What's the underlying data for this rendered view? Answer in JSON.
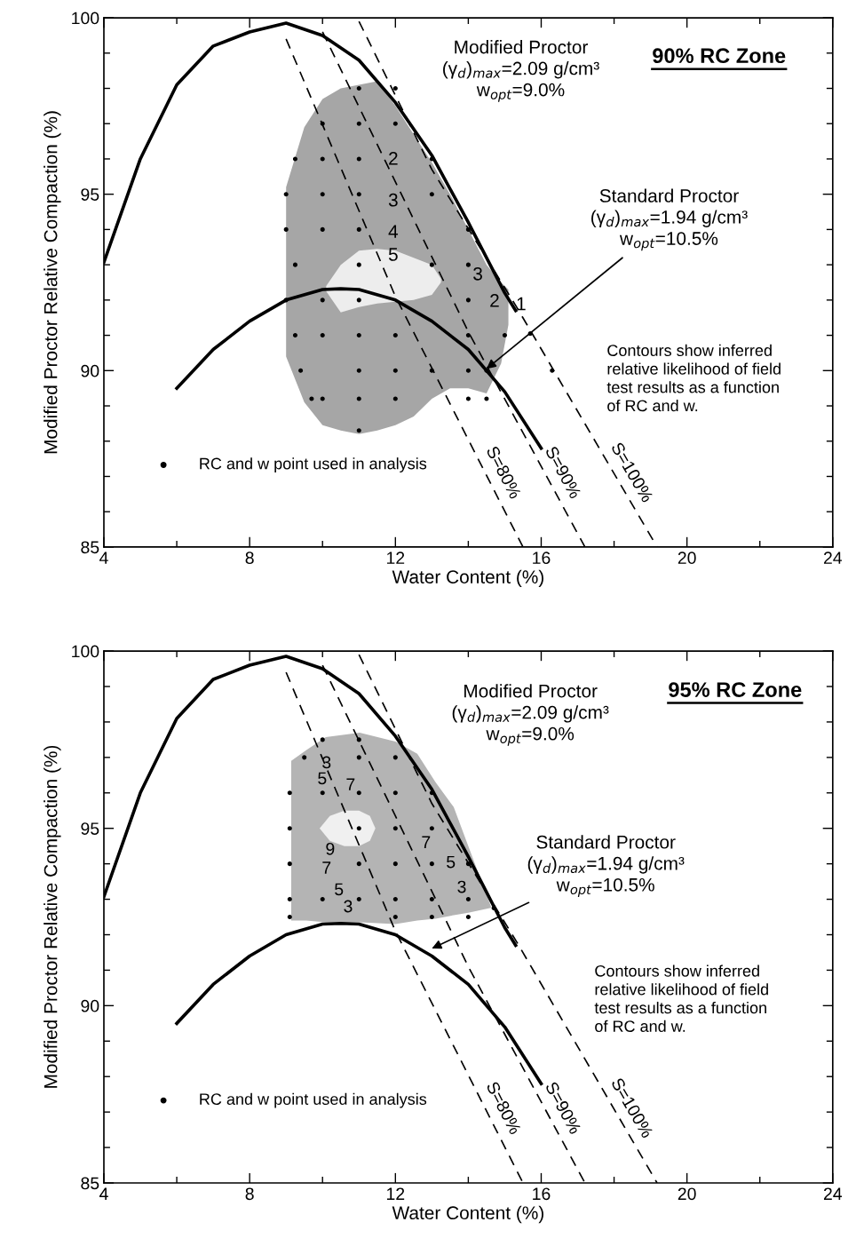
{
  "chart_data": [
    {
      "type": "line",
      "title": "90% RC Zone",
      "xlabel": "Water Content (%)",
      "ylabel": "Modified Proctor Relative Compaction (%)",
      "xlim": [
        4,
        24
      ],
      "ylim": [
        85,
        100
      ],
      "xticks": [
        4,
        {
          "value": 6,
          "label": null
        },
        8,
        {
          "value": 10,
          "label": null
        },
        12,
        {
          "value": 14,
          "label": null
        },
        16,
        {
          "value": 18,
          "label": null
        },
        20,
        {
          "value": 22,
          "label": null
        },
        24
      ],
      "yticks": [
        85,
        {
          "value": 86,
          "label": null
        },
        {
          "value": 87,
          "label": null
        },
        {
          "value": 88,
          "label": null
        },
        {
          "value": 89,
          "label": null
        },
        90,
        {
          "value": 91,
          "label": null
        },
        {
          "value": 92,
          "label": null
        },
        {
          "value": 93,
          "label": null
        },
        {
          "value": 94,
          "label": null
        },
        95,
        {
          "value": 96,
          "label": null
        },
        {
          "value": 97,
          "label": null
        },
        {
          "value": 98,
          "label": null
        },
        {
          "value": 99,
          "label": null
        },
        100
      ],
      "legend": "bottom left",
      "series": [
        {
          "color": "#000000",
          "line_style": "solid",
          "x": [
            4,
            5,
            6,
            7,
            8,
            9,
            10,
            11,
            12,
            13,
            14,
            15,
            15.3
          ],
          "values": [
            93.07,
            96.0,
            98.1,
            99.2,
            99.6,
            99.85,
            99.5,
            98.8,
            97.6,
            96.1,
            94.2,
            92.2,
            91.7
          ]
        },
        {
          "color": "#000000",
          "line_style": "solid",
          "x": [
            6,
            7,
            8,
            9,
            10,
            10.5,
            11,
            12,
            13,
            14,
            15,
            16
          ],
          "values": [
            89.5,
            90.6,
            91.4,
            92.0,
            92.3,
            92.32,
            92.3,
            92.0,
            91.4,
            90.6,
            89.4,
            87.8
          ]
        },
        {
          "name": "S=80%",
          "color": "#000000",
          "line_style": "dashed",
          "x": [
            9.0,
            12.0,
            15.5
          ],
          "values": [
            99.4,
            92.1,
            85
          ]
        },
        {
          "name": "S=90%",
          "color": "#000000",
          "line_style": "dashed",
          "x": [
            10.0,
            14.0,
            17.2
          ],
          "values": [
            99.6,
            91.1,
            85
          ]
        },
        {
          "name": "S=100%",
          "color": "#000000",
          "line_style": "dashed",
          "x": [
            11.0,
            13.0,
            15.35,
            19.18
          ],
          "values": [
            99.9,
            95.7,
            91.76,
            85
          ]
        },
        {
          "type": "scatter",
          "name": "RC and w point used in analysis",
          "color": "#000000",
          "marker": "circle",
          "x": [
            11,
            12,
            10,
            11,
            12,
            9.25,
            10,
            11,
            13,
            9,
            10,
            11,
            13,
            9,
            10,
            11,
            14,
            9.25,
            11,
            13,
            14,
            9,
            10,
            11,
            14,
            9.25,
            10,
            11,
            12,
            14,
            15,
            15.7,
            9.4,
            11,
            12,
            13,
            14,
            14.5,
            16.3,
            9.7,
            10,
            11,
            12,
            14,
            14.5,
            11
          ],
          "values": [
            98,
            98,
            97,
            97,
            97,
            96,
            96,
            96,
            96,
            95,
            95,
            95,
            95,
            94,
            94,
            94,
            94,
            93,
            93,
            93,
            93,
            92,
            92,
            92,
            92,
            91,
            91,
            91,
            91,
            91,
            91,
            91.05,
            90,
            90,
            90,
            90,
            90,
            90,
            90,
            89.2,
            89.2,
            89.2,
            89.2,
            89.2,
            89.2,
            88.3
          ]
        }
      ],
      "annotations": [
        "Modified Proctor\n(γ$_{d}$)$_{max}$=2.09 g/cm³\nw$_{opt}$=9.0%",
        "Standard Proctor\n(γ$_{d}$)$_{max}$=1.94 g/cm³\nw$_{opt}$=10.5%",
        "Contours show inferred\nrelative likelihood of field\ntest results as a function\nof RC and w.",
        "2",
        "3",
        "4",
        "5",
        "3",
        "2",
        "1"
      ]
    },
    {
      "type": "line",
      "title": "95% RC Zone",
      "xlabel": "Water Content (%)",
      "ylabel": "Modified Proctor Relative Compaction (%)",
      "xlim": [
        4,
        24
      ],
      "ylim": [
        85,
        100
      ],
      "xticks": [
        4,
        {
          "value": 6,
          "label": null
        },
        8,
        {
          "value": 10,
          "label": null
        },
        12,
        {
          "value": 14,
          "label": null
        },
        16,
        {
          "value": 18,
          "label": null
        },
        20,
        {
          "value": 22,
          "label": null
        },
        24
      ],
      "yticks": [
        85,
        {
          "value": 86,
          "label": null
        },
        {
          "value": 87,
          "label": null
        },
        {
          "value": 88,
          "label": null
        },
        {
          "value": 89,
          "label": null
        },
        90,
        {
          "value": 91,
          "label": null
        },
        {
          "value": 92,
          "label": null
        },
        {
          "value": 93,
          "label": null
        },
        {
          "value": 94,
          "label": null
        },
        95,
        {
          "value": 96,
          "label": null
        },
        {
          "value": 97,
          "label": null
        },
        {
          "value": 98,
          "label": null
        },
        {
          "value": 99,
          "label": null
        },
        100
      ],
      "legend": "bottom left",
      "series": [
        {
          "color": "#000000",
          "line_style": "solid",
          "x": [
            4,
            5,
            6,
            7,
            8,
            9,
            10,
            11,
            12,
            13,
            14,
            15,
            15.3
          ],
          "values": [
            93.07,
            96.0,
            98.1,
            99.2,
            99.6,
            99.85,
            99.5,
            98.8,
            97.6,
            96.1,
            94.2,
            92.2,
            91.7
          ]
        },
        {
          "color": "#000000",
          "line_style": "solid",
          "x": [
            6,
            7,
            8,
            9,
            10,
            10.5,
            11,
            12,
            13,
            14,
            15,
            16
          ],
          "values": [
            89.5,
            90.6,
            91.4,
            92.0,
            92.3,
            92.32,
            92.3,
            92.0,
            91.4,
            90.6,
            89.4,
            87.8
          ]
        },
        {
          "name": "S=80%",
          "color": "#000000",
          "line_style": "dashed",
          "x": [
            9.0,
            12.0,
            15.5
          ],
          "values": [
            99.4,
            92.1,
            85
          ]
        },
        {
          "name": "S=90%",
          "color": "#000000",
          "line_style": "dashed",
          "x": [
            10.0,
            14.0,
            17.2
          ],
          "values": [
            99.6,
            91.1,
            85
          ]
        },
        {
          "name": "S=100%",
          "color": "#000000",
          "line_style": "dashed",
          "x": [
            11.0,
            13.0,
            15.35,
            19.18
          ],
          "values": [
            99.9,
            95.7,
            91.76,
            85
          ]
        },
        {
          "type": "scatter",
          "name": "RC and w point used in analysis",
          "color": "#000000",
          "marker": "circle",
          "x": [
            10,
            11,
            9.5,
            11,
            12,
            9.1,
            10,
            11,
            12,
            13,
            9.1,
            11,
            12,
            13,
            9.1,
            11,
            12,
            13,
            14,
            9.1,
            10,
            11,
            12,
            13,
            14,
            9.1,
            12,
            13,
            14,
            14.7
          ],
          "values": [
            97.5,
            97.5,
            97,
            97,
            97,
            96,
            96,
            96,
            96,
            96,
            95,
            95,
            95,
            95,
            94,
            94,
            94,
            94,
            94,
            93,
            93,
            93,
            93,
            93,
            93,
            92.5,
            92.5,
            92.5,
            92.5,
            92.75
          ]
        }
      ],
      "annotations": [
        "Modified Proctor\n(γ$_{d}$)$_{max}$=2.09 g/cm³\nw$_{opt}$=9.0%",
        "Standard Proctor\n(γ$_{d}$)$_{max}$=1.94 g/cm³\nw$_{opt}$=10.5%",
        "Contours show inferred\nrelative likelihood of field\ntest results as a function\nof RC and w.",
        "3",
        "5",
        "7",
        "9",
        "7",
        "5",
        "3",
        "7",
        "5",
        "3"
      ]
    }
  ]
}
